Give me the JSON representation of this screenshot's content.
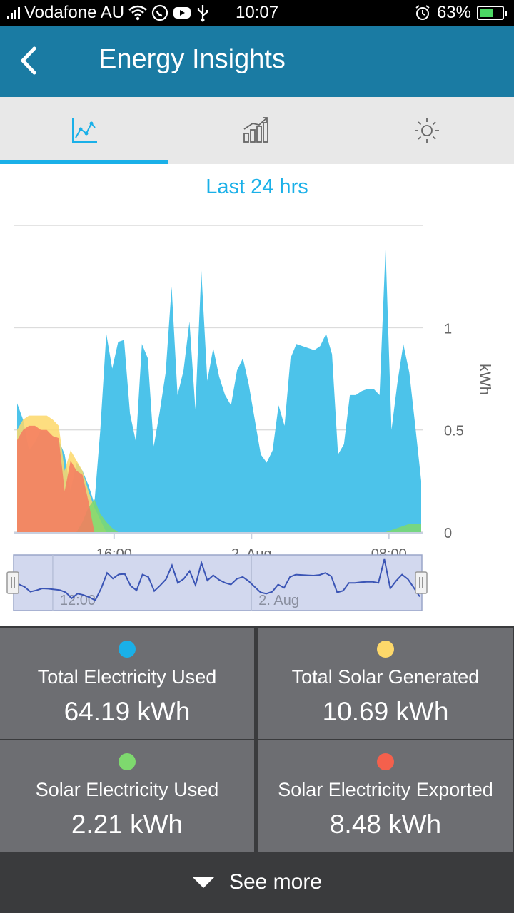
{
  "status_bar": {
    "carrier": "Vodafone AU",
    "time": "10:07",
    "battery": "63%",
    "icons": [
      "signal-icon",
      "wifi-icon",
      "whatsapp-icon",
      "youtube-icon",
      "usb-icon",
      "alarm-icon",
      "battery-icon"
    ]
  },
  "app_bar": {
    "title": "Energy Insights",
    "back_icon": "back-arrow-icon",
    "color": "#1a7ba3"
  },
  "tabs": [
    {
      "icon": "line-chart-icon",
      "selected": true
    },
    {
      "icon": "bar-chart-icon",
      "selected": false
    },
    {
      "icon": "sun-icon",
      "selected": false
    }
  ],
  "period_label": "Last 24 hrs",
  "chart_data": {
    "type": "area",
    "ylabel": "kWh",
    "y_ticks": [
      "0",
      "0.5",
      "1"
    ],
    "ylim": [
      0,
      1.5
    ],
    "x_ticks": [
      "16:00",
      "2. Aug",
      "08:00"
    ],
    "navigator_ticks": [
      "12:00",
      "2. Aug"
    ],
    "series": [
      {
        "color": "#4cc3ea",
        "values": [
          0.63,
          0.55,
          0.4,
          0.44,
          0.5,
          0.49,
          0.47,
          0.45,
          0.38,
          0.2,
          0.34,
          0.3,
          0.23,
          0.14,
          0.5,
          0.97,
          0.8,
          0.93,
          0.94,
          0.58,
          0.44,
          0.92,
          0.85,
          0.42,
          0.59,
          0.78,
          1.2,
          0.67,
          0.79,
          1.03,
          0.6,
          1.28,
          0.74,
          0.9,
          0.76,
          0.67,
          0.62,
          0.79,
          0.85,
          0.72,
          0.55,
          0.38,
          0.34,
          0.4,
          0.62,
          0.52,
          0.85,
          0.92,
          0.91,
          0.9,
          0.89,
          0.91,
          0.97,
          0.87,
          0.38,
          0.43,
          0.67,
          0.67,
          0.69,
          0.7,
          0.7,
          0.67,
          1.39,
          0.5,
          0.73,
          0.92,
          0.78,
          0.52,
          0.25
        ]
      },
      {
        "color": "#fdd86a",
        "values": [
          0.5,
          0.55,
          0.57,
          0.57,
          0.57,
          0.57,
          0.55,
          0.52,
          0.3,
          0.4,
          0.35,
          0.3,
          0.2,
          0.12,
          0.06,
          0.0,
          0.0,
          0.0,
          0.0,
          0.0,
          0.0,
          0.0,
          0.0,
          0.0,
          0.0,
          0.0,
          0.0,
          0.0,
          0.0,
          0.0,
          0.0,
          0.0,
          0.0,
          0.0,
          0.0,
          0.0,
          0.0,
          0.0,
          0.0,
          0.0,
          0.0,
          0.0,
          0.0,
          0.0,
          0.0,
          0.0,
          0.0,
          0.0,
          0.0,
          0.0,
          0.0,
          0.0,
          0.0,
          0.0,
          0.0,
          0.0,
          0.0,
          0.0,
          0.0,
          0.0,
          0.0,
          0.0,
          0.0,
          0.0,
          0.0,
          0.0,
          0.0,
          0.0,
          0.0
        ]
      },
      {
        "color": "#7ed96e",
        "values": [
          0.0,
          0.0,
          0.0,
          0.0,
          0.0,
          0.0,
          0.0,
          0.0,
          0.0,
          0.0,
          0.0,
          0.05,
          0.12,
          0.16,
          0.09,
          0.05,
          0.02,
          0.0,
          0.0,
          0.0,
          0.0,
          0.0,
          0.0,
          0.0,
          0.0,
          0.0,
          0.0,
          0.0,
          0.0,
          0.0,
          0.0,
          0.0,
          0.0,
          0.0,
          0.0,
          0.0,
          0.0,
          0.0,
          0.0,
          0.0,
          0.0,
          0.0,
          0.0,
          0.0,
          0.0,
          0.0,
          0.0,
          0.0,
          0.0,
          0.0,
          0.0,
          0.0,
          0.0,
          0.0,
          0.0,
          0.0,
          0.0,
          0.0,
          0.0,
          0.0,
          0.0,
          0.0,
          0.0,
          0.01,
          0.02,
          0.03,
          0.04,
          0.04,
          0.04
        ]
      },
      {
        "color": "#f47a5f",
        "values": [
          0.45,
          0.5,
          0.52,
          0.52,
          0.5,
          0.5,
          0.47,
          0.46,
          0.2,
          0.35,
          0.3,
          0.28,
          0.15,
          0.0,
          0.0,
          0.0,
          0.0,
          0.0,
          0.0,
          0.0,
          0.0,
          0.0,
          0.0,
          0.0,
          0.0,
          0.0,
          0.0,
          0.0,
          0.0,
          0.0,
          0.0,
          0.0,
          0.0,
          0.0,
          0.0,
          0.0,
          0.0,
          0.0,
          0.0,
          0.0,
          0.0,
          0.0,
          0.0,
          0.0,
          0.0,
          0.0,
          0.0,
          0.0,
          0.0,
          0.0,
          0.0,
          0.0,
          0.0,
          0.0,
          0.0,
          0.0,
          0.0,
          0.0,
          0.0,
          0.0,
          0.0,
          0.0,
          0.0,
          0.0,
          0.0,
          0.0,
          0.0,
          0.0,
          0.0
        ]
      }
    ]
  },
  "stats": [
    {
      "label": "Total Electricity Used",
      "value": "64.19 kWh",
      "color": "#1ab0e8"
    },
    {
      "label": "Total Solar Generated",
      "value": "10.69 kWh",
      "color": "#fdd86a"
    },
    {
      "label": "Solar Electricity Used",
      "value": "2.21 kWh",
      "color": "#7ed96e"
    },
    {
      "label": "Solar Electricity Exported",
      "value": "8.48 kWh",
      "color": "#f4604c"
    }
  ],
  "see_more": {
    "label": "See more",
    "icon": "triangle-down-icon"
  }
}
